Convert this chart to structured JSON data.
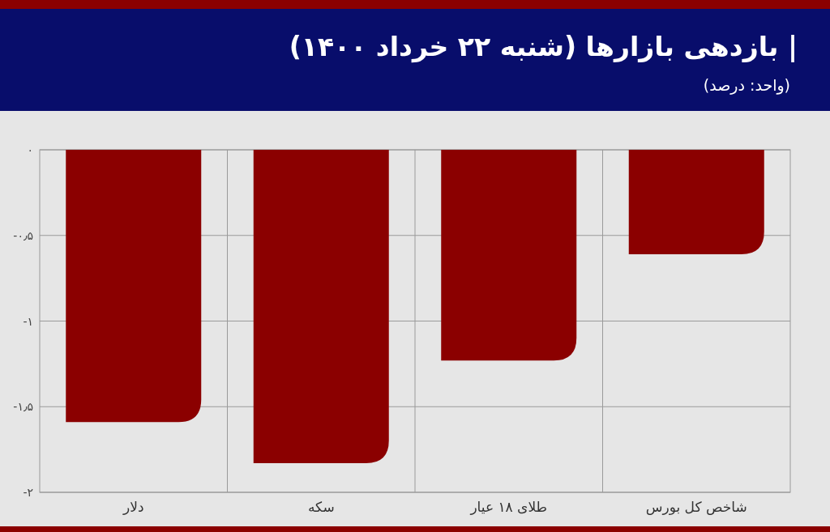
{
  "chart_data": {
    "type": "bar",
    "title": "| بازدهی بازارها (شنبه ۲۲ خرداد ۱۴۰۰)",
    "subtitle": "(واحد: درصد)",
    "categories": [
      "دلار",
      "سکه",
      "طلای ۱۸ عیار",
      "شاخص کل بورس"
    ],
    "values": [
      -1.59,
      -1.83,
      -1.23,
      -0.61
    ],
    "color": "#8b0000",
    "ylim": [
      -2,
      0
    ],
    "yticks": [
      {
        "value": 0,
        "label": "۰"
      },
      {
        "value": -0.5,
        "label": "-۰٫۵"
      },
      {
        "value": -1,
        "label": "-۱"
      },
      {
        "value": -1.5,
        "label": "-۱٫۵"
      },
      {
        "value": -2,
        "label": "-۲"
      }
    ],
    "grid": true
  }
}
